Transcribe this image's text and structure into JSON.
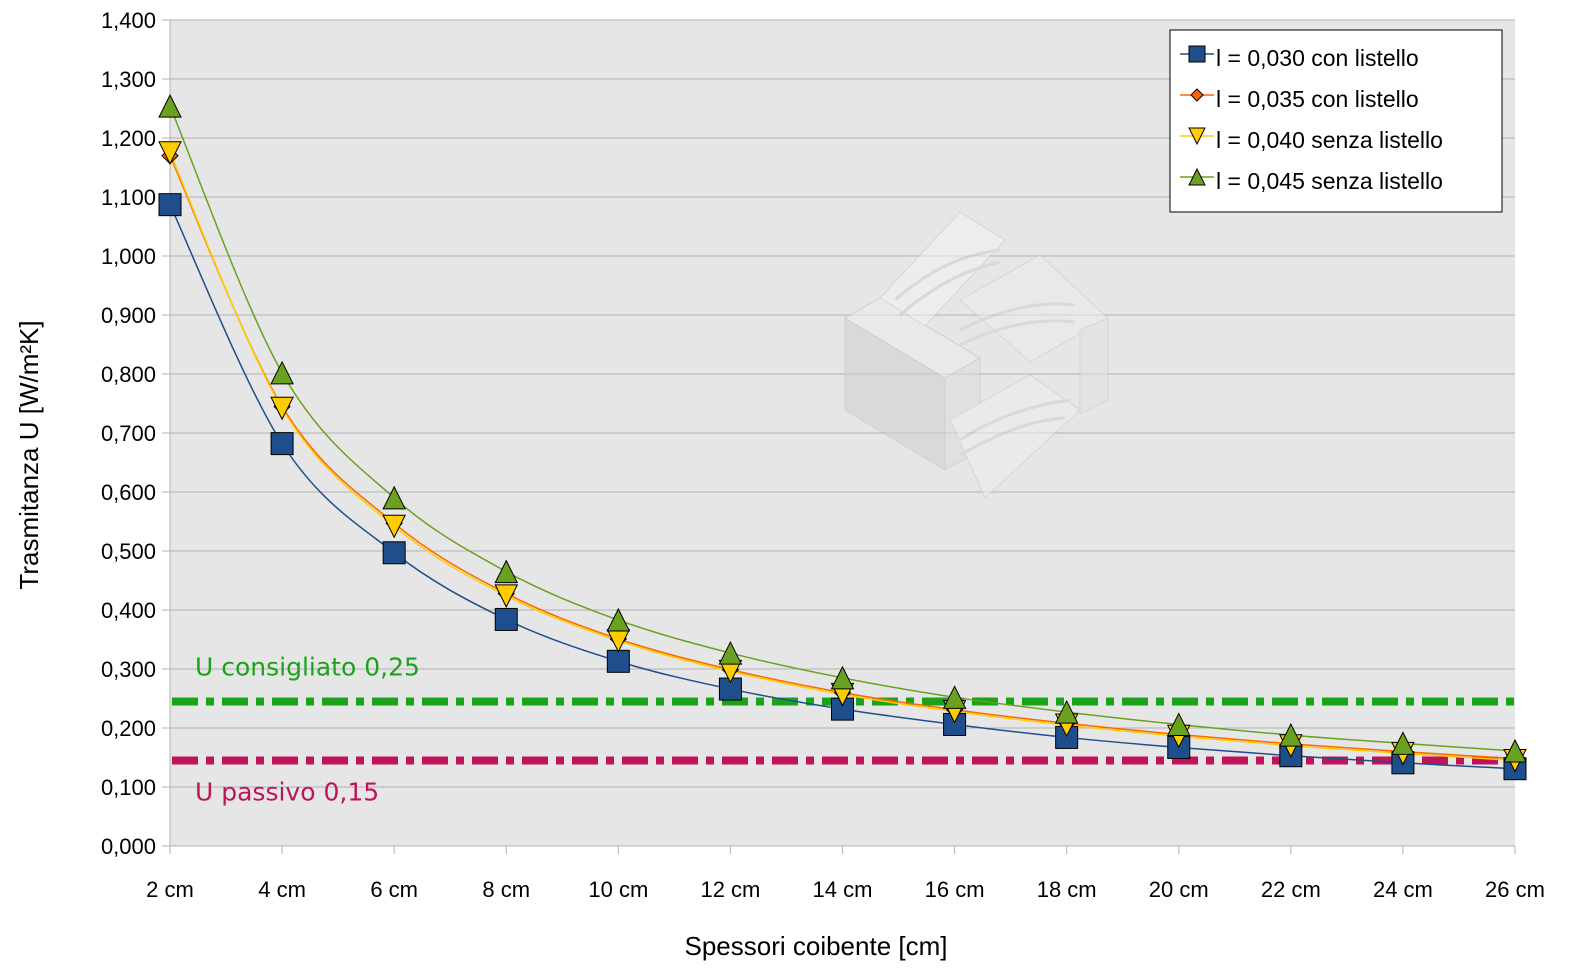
{
  "chart_data": {
    "type": "line",
    "title": "",
    "xlabel": "Spessori coibente [cm]",
    "ylabel": "Trasmitanza U [W/m²K]",
    "categories": [
      "2 cm",
      "4 cm",
      "6 cm",
      "8 cm",
      "10 cm",
      "12 cm",
      "14 cm",
      "16 cm",
      "18 cm",
      "20 cm",
      "22 cm",
      "24 cm",
      "26 cm"
    ],
    "y_ticks": [
      "0,000",
      "0,100",
      "0,200",
      "0,300",
      "0,400",
      "0,500",
      "0,600",
      "0,700",
      "0,800",
      "0,900",
      "1,000",
      "1,100",
      "1,200",
      "1,300",
      "1,400"
    ],
    "ylim": [
      0,
      1.4
    ],
    "grid": true,
    "legend_position": "top-right",
    "series": [
      {
        "name": "l = 0,030 con listello",
        "color": "#1f4e8c",
        "marker": "square",
        "values": [
          1.087,
          0.682,
          0.497,
          0.384,
          0.313,
          0.266,
          0.232,
          0.206,
          0.184,
          0.167,
          0.153,
          0.141,
          0.131
        ]
      },
      {
        "name": "l = 0,035 con listello",
        "color": "#ff6600",
        "marker": "diamond",
        "values": [
          1.17,
          0.745,
          0.547,
          0.428,
          0.351,
          0.299,
          0.26,
          0.231,
          0.208,
          0.189,
          0.173,
          0.16,
          0.148
        ]
      },
      {
        "name": "l = 0,040 senza listello",
        "color": "#ffcc00",
        "marker": "triangle-down",
        "values": [
          1.175,
          0.742,
          0.542,
          0.424,
          0.348,
          0.296,
          0.257,
          0.228,
          0.205,
          0.186,
          0.17,
          0.157,
          0.145
        ]
      },
      {
        "name": "l = 0,045 senza listello",
        "color": "#6aa121",
        "marker": "triangle-up",
        "values": [
          1.254,
          0.802,
          0.59,
          0.465,
          0.383,
          0.327,
          0.285,
          0.252,
          0.227,
          0.206,
          0.188,
          0.174,
          0.161
        ]
      }
    ],
    "reference_lines": [
      {
        "label": "U consigliato 0,25",
        "value": 0.245,
        "color": "#1aa31a"
      },
      {
        "label": "U passivo 0,15",
        "value": 0.145,
        "color": "#c0145a"
      }
    ],
    "plot_background": "#e6e6e6"
  }
}
